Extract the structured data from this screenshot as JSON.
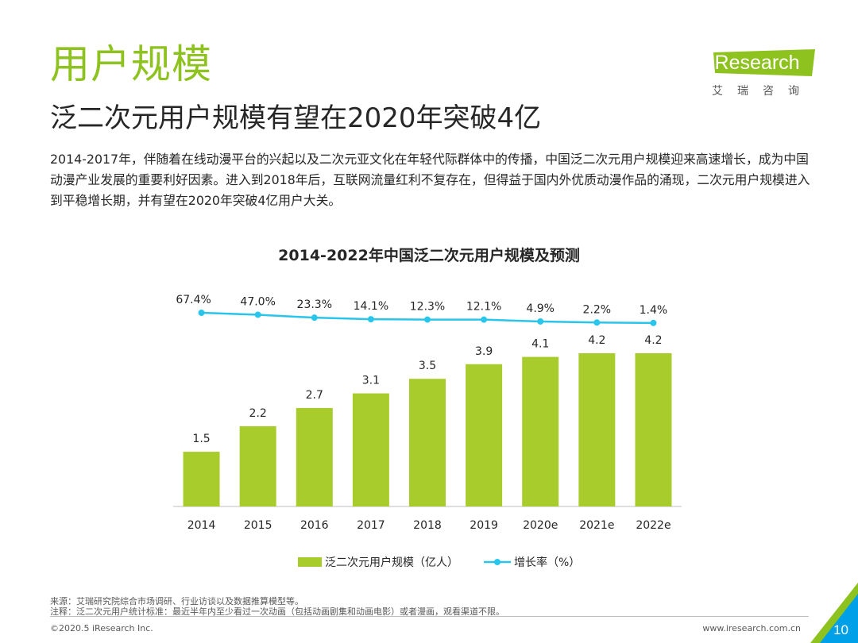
{
  "header": {
    "section_title": "用户规模",
    "subtitle": "泛二次元用户规模有望在2020年突破4亿"
  },
  "logo": {
    "brand": "iResearch",
    "chinese": "艾瑞咨询"
  },
  "description": "2014-2017年，伴随着在线动漫平台的兴起以及二次元亚文化在年轻代际群体中的传播，中国泛二次元用户规模迎来高速增长，成为中国动漫产业发展的重要利好因素。进入到2018年后，互联网流量红利不复存在，但得益于国内外优质动漫作品的涌现，二次元用户规模进入到平稳增长期，并有望在2020年突破4亿用户大关。",
  "chart_data": {
    "type": "bar+line",
    "title": "2014-2022年中国泛二次元用户规模及预测",
    "categories": [
      "2014",
      "2015",
      "2016",
      "2017",
      "2018",
      "2019",
      "2020e",
      "2021e",
      "2022e"
    ],
    "series": [
      {
        "name": "泛二次元用户规模（亿人）",
        "type": "bar",
        "values": [
          1.5,
          2.2,
          2.7,
          3.1,
          3.5,
          3.9,
          4.1,
          4.2,
          4.2
        ],
        "labels": [
          "1.5",
          "2.2",
          "2.7",
          "3.1",
          "3.5",
          "3.9",
          "4.1",
          "4.2",
          "4.2"
        ],
        "color": "#A8CC2C"
      },
      {
        "name": "增长率（%）",
        "type": "line",
        "values": [
          67.4,
          47.0,
          23.3,
          14.1,
          12.3,
          12.1,
          4.9,
          2.2,
          1.4
        ],
        "labels": [
          "67.4%",
          "47.0%",
          "23.3%",
          "14.1%",
          "12.3%",
          "12.1%",
          "4.9%",
          "2.2%",
          "1.4%"
        ],
        "color": "#29C5EA"
      }
    ],
    "legend_position": "bottom-center"
  },
  "notes": {
    "source": "来源：艾瑞研究院综合市场调研、行业访谈以及数据推算模型等。",
    "note": "注释：泛二次元用户统计标准：最近半年内至少看过一次动画（包括动画剧集和动画电影）或者漫画，观看渠道不限。"
  },
  "footer": {
    "copyright": "©2020.5 iResearch Inc.",
    "url": "www.iresearch.com.cn",
    "page_number": "10"
  },
  "colors": {
    "accent_green": "#8DC21F",
    "bar_green": "#A8CC2C",
    "line_blue": "#29C5EA",
    "corner_blue": "#00A0E9"
  }
}
